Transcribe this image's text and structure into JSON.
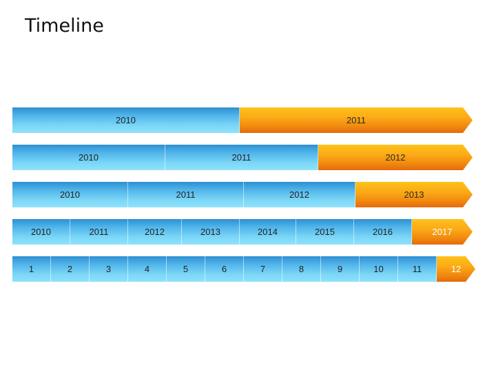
{
  "title": "Timeline",
  "rows": [
    {
      "segments": [
        {
          "label": "2010",
          "color": "blue"
        },
        {
          "label": "2011",
          "color": "orange"
        }
      ]
    },
    {
      "segments": [
        {
          "label": "2010",
          "color": "blue"
        },
        {
          "label": "2011",
          "color": "blue"
        },
        {
          "label": "2012",
          "color": "orange"
        }
      ]
    },
    {
      "segments": [
        {
          "label": "2010",
          "color": "blue"
        },
        {
          "label": "2011",
          "color": "blue"
        },
        {
          "label": "2012",
          "color": "blue"
        },
        {
          "label": "2013",
          "color": "orange"
        }
      ]
    },
    {
      "segments": [
        {
          "label": "2010",
          "color": "blue"
        },
        {
          "label": "2011",
          "color": "blue"
        },
        {
          "label": "2012",
          "color": "blue"
        },
        {
          "label": "2013",
          "color": "blue"
        },
        {
          "label": "2014",
          "color": "blue"
        },
        {
          "label": "2015",
          "color": "blue"
        },
        {
          "label": "2016",
          "color": "blue"
        },
        {
          "label": "2017",
          "color": "orange"
        }
      ]
    },
    {
      "segments": [
        {
          "label": "1",
          "color": "blue"
        },
        {
          "label": "2",
          "color": "blue"
        },
        {
          "label": "3",
          "color": "blue"
        },
        {
          "label": "4",
          "color": "blue"
        },
        {
          "label": "5",
          "color": "blue"
        },
        {
          "label": "6",
          "color": "blue"
        },
        {
          "label": "7",
          "color": "blue"
        },
        {
          "label": "8",
          "color": "blue"
        },
        {
          "label": "9",
          "color": "blue"
        },
        {
          "label": "10",
          "color": "blue"
        },
        {
          "label": "11",
          "color": "blue"
        },
        {
          "label": "12",
          "color": "orange"
        }
      ]
    }
  ],
  "colors": {
    "blue": "#4fb3ea",
    "orange": "#f39a12"
  }
}
